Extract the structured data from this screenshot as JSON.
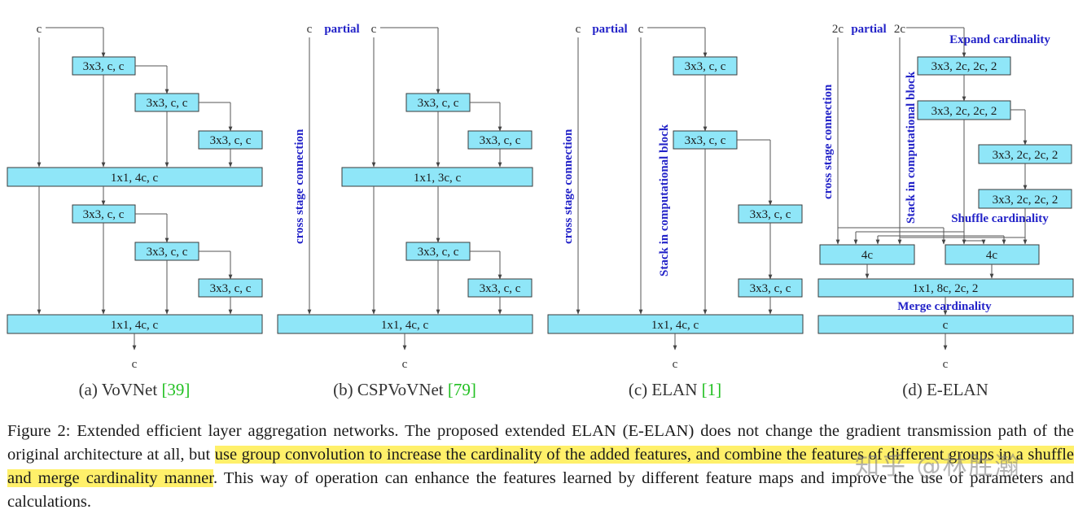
{
  "panels": {
    "vovnet": {
      "input": "c",
      "output": "c",
      "b1": "3x3, c, c",
      "b2": "3x3, c, c",
      "b3": "3x3, c, c",
      "t1": "1x1, 4c, c",
      "b4": "3x3, c, c",
      "b5": "3x3, c, c",
      "b6": "3x3, c, c",
      "t2": "1x1, 4c, c",
      "caption_prefix": "(a) VoVNet",
      "ref": "[39]"
    },
    "cspvovnet": {
      "input_left": "c",
      "partial": "partial",
      "input_right": "c",
      "cross_stage": "cross stage connection",
      "b1": "3x3, c, c",
      "b2": "3x3, c, c",
      "t1": "1x1, 3c, c",
      "b3": "3x3, c, c",
      "b4": "3x3, c, c",
      "t2": "1x1, 4c, c",
      "output": "c",
      "caption_prefix": "(b) CSPVoVNet",
      "ref": "[79]"
    },
    "elan": {
      "input_left": "c",
      "partial": "partial",
      "input_right": "c",
      "cross_stage": "cross stage connection",
      "stack": "Stack in computational block",
      "b1": "3x3, c, c",
      "b2": "3x3, c, c",
      "b3": "3x3, c, c",
      "b4": "3x3, c, c",
      "t1": "1x1, 4c, c",
      "output": "c",
      "caption_prefix": "(c) ELAN",
      "ref": "[1]"
    },
    "eelan": {
      "input_left": "2c",
      "partial": "partial",
      "input_right": "2c",
      "expand": "Expand cardinality",
      "cross_stage": "cross stage connection",
      "stack": "Stack in computational block",
      "b1": "3x3, 2c, 2c, 2",
      "b2": "3x3, 2c, 2c, 2",
      "b3": "3x3, 2c, 2c, 2",
      "b4": "3x3, 2c, 2c, 2",
      "shuffle": "Shuffle cardinality",
      "g1": "4c",
      "g2": "4c",
      "t1": "1x1, 8c, 2c, 2",
      "merge": "Merge cardinality",
      "t2": "c",
      "output": "c",
      "caption": "(d) E-ELAN"
    }
  },
  "caption": {
    "part1": "Figure 2: Extended efficient layer aggregation networks. The proposed extended ELAN (E-ELAN) does not change the gradient transmission path of the original architecture at all, but ",
    "highlight": "use group convolution to increase the cardinality of the added features, and combine the features of different groups in a shuffle and merge cardinality manner",
    "part2": ". This way of operation can enhance the features learned by different feature maps and improve the use of parameters and calculations."
  },
  "watermark": "知乎 @林胜瀚"
}
